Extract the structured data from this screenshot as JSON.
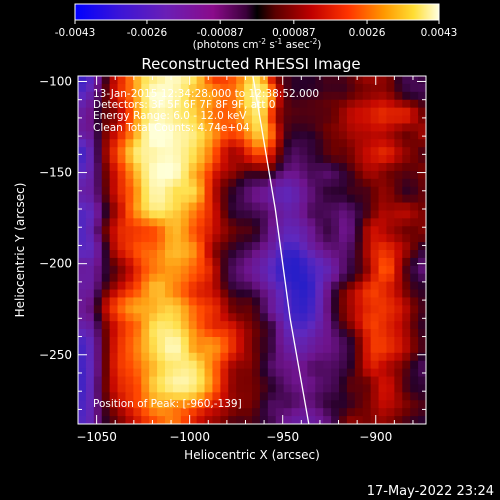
{
  "colorbar": {
    "ticks": [
      "-0.0043",
      "-0.0026",
      "-0.00087",
      "0.00087",
      "0.0026",
      "0.0043"
    ],
    "unit_text": "(photons cm",
    "unit_exp1": "-2",
    "unit_mid1": " s",
    "unit_exp2": "-1",
    "unit_mid2": " asec",
    "unit_exp3": "-2",
    "unit_end": ")",
    "range": [
      -0.0043,
      0.0043
    ]
  },
  "chart_data": {
    "type": "heatmap",
    "title": "Reconstructed RHESSI Image",
    "xlabel": "Heliocentric X (arcsec)",
    "ylabel": "Heliocentric Y (arcsec)",
    "xlim": [
      -1060,
      -873
    ],
    "ylim": [
      -288,
      -97
    ],
    "xticks": [
      -1050,
      -1000,
      -950,
      -900
    ],
    "yticks": [
      -100,
      -150,
      -200,
      -250
    ],
    "xtick_labels": [
      "−1050",
      "−1000",
      "−950",
      "−900"
    ],
    "ytick_labels": [
      "−100",
      "−150",
      "−200",
      "−250"
    ],
    "limb_curve": [
      [
        -966,
        -97
      ],
      [
        -954,
        -170
      ],
      [
        -946,
        -230
      ],
      [
        -936,
        -288
      ]
    ],
    "annotations": {
      "time": "13-Jan-2015 12:34:28.000 to 12:38:52.000",
      "detectors": "Detectors: 3F 5F 6F 7F 8F 9F, att 0",
      "energy": "Energy Range: 6.0 - 12.0 keV",
      "clean": "Clean    Total Counts: 4.74e+04",
      "peak": "Position of Peak: [-960,-139]"
    }
  },
  "footer": {
    "date": "17-May-2022 23:24"
  }
}
